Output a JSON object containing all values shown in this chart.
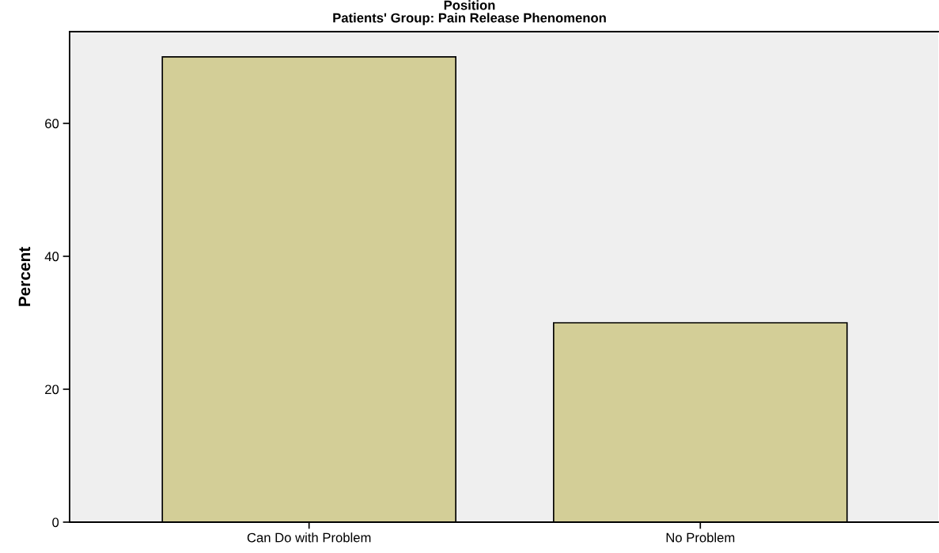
{
  "chart_data": {
    "type": "bar",
    "title": "Position",
    "subtitle": "Patients' Group: Pain Release Phenomenon",
    "ylabel": "Percent",
    "categories": [
      "Can Do with Problem",
      "No Problem"
    ],
    "values": [
      70,
      30
    ],
    "color": "#d3ce97",
    "ylim": [
      0,
      73.8
    ],
    "yticks": [
      0,
      20,
      40,
      60
    ],
    "grid": false
  }
}
